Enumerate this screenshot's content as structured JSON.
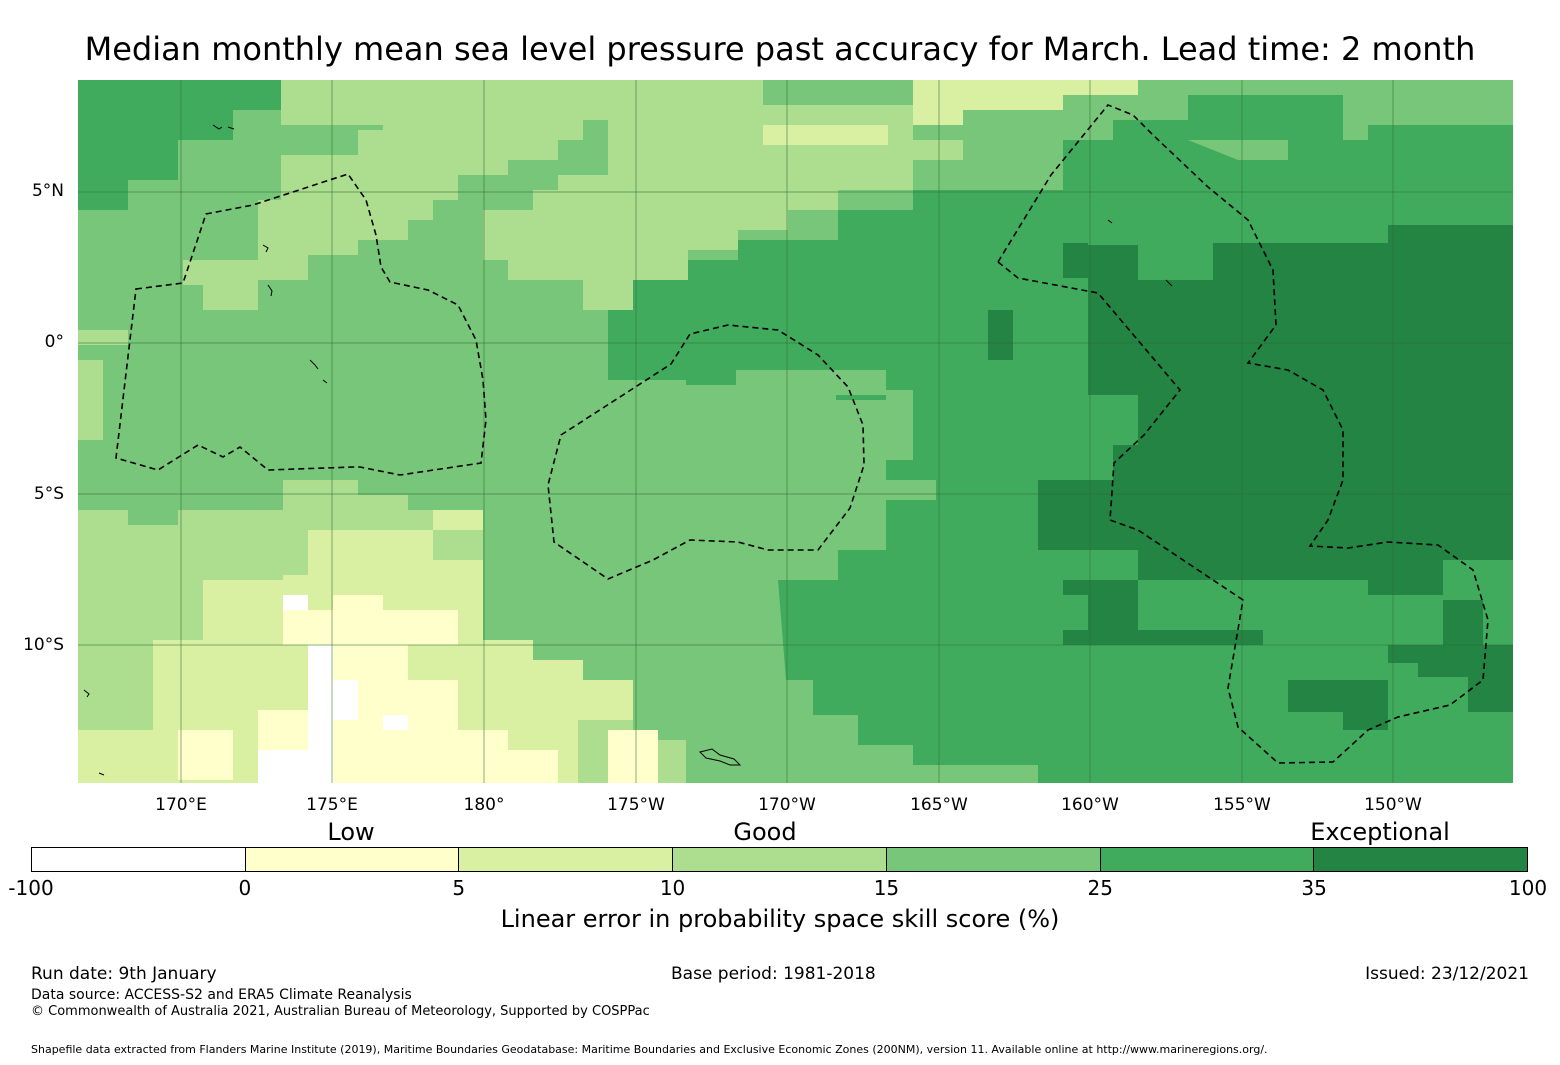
{
  "title": "Median monthly mean sea level pressure past accuracy for March. Lead time: 2 month",
  "map": {
    "lat_labels": [
      "5°N",
      "0°",
      "5°S",
      "10°S"
    ],
    "lon_labels": [
      "170°E",
      "175°E",
      "180°",
      "175°W",
      "170°W",
      "165°W",
      "160°W",
      "155°W",
      "150°W"
    ],
    "lon_range_deg_east": [
      166.6,
      213.9
    ],
    "lat_range_deg": [
      -14.4,
      8.8
    ],
    "grid": true,
    "eez_boundaries": "dashed black lines"
  },
  "legend": {
    "categories": [
      "Low",
      "Good",
      "Exceptional"
    ],
    "bins": [
      {
        "from": -100,
        "to": 0,
        "color": "#ffffff"
      },
      {
        "from": 0,
        "to": 5,
        "color": "#ffffcc"
      },
      {
        "from": 5,
        "to": 10,
        "color": "#d9f0a3"
      },
      {
        "from": 10,
        "to": 15,
        "color": "#addd8e"
      },
      {
        "from": 15,
        "to": 25,
        "color": "#78c679"
      },
      {
        "from": 25,
        "to": 35,
        "color": "#41ab5d"
      },
      {
        "from": 35,
        "to": 100,
        "color": "#238443"
      }
    ],
    "tick_labels": [
      "-100",
      "0",
      "5",
      "10",
      "15",
      "25",
      "35",
      "100"
    ],
    "title": "Linear error in probability space skill score (%)"
  },
  "footer": {
    "run_date": "Run date: 9th January",
    "base_period": "Base period: 1981-2018",
    "issued": "Issued: 23/12/2021",
    "data_source": "Data source: ACCESS-S2 and ERA5 Climate Reanalysis",
    "copyright": "© Commonwealth of Australia 2021, Australian Bureau of Meteorology, Supported by COSPPac",
    "shapefile": "Shapefile data extracted from Flanders Marine Institute (2019), Maritime Boundaries Geodatabase: Maritime Boundaries and Exclusive Economic Zones (200NM), version 11. Available online at http://www.marineregions.org/."
  }
}
